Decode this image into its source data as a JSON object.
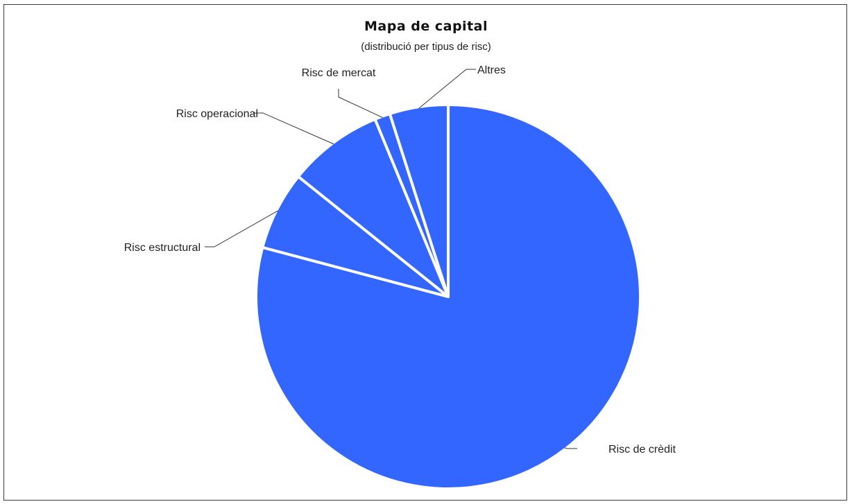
{
  "chart_data": {
    "type": "pie",
    "title": "Mapa de capital",
    "subtitle": "(distribució per tipus de risc)",
    "slices": [
      {
        "label": "Risc de crèdit",
        "value": 78.9
      },
      {
        "label": "Risc estructural",
        "value": 6.6
      },
      {
        "label": "Risc operacional",
        "value": 8.0
      },
      {
        "label": "Risc de mercat",
        "value": 1.3
      },
      {
        "label": "Altres",
        "value": 4.9
      }
    ],
    "start_direction": "12 o'clock, clockwise",
    "legend": "none (direct labels with leader lines)",
    "colors": {
      "slice": "#3366ff",
      "border": "#ffffff",
      "frame": "#3a3a3a"
    }
  }
}
